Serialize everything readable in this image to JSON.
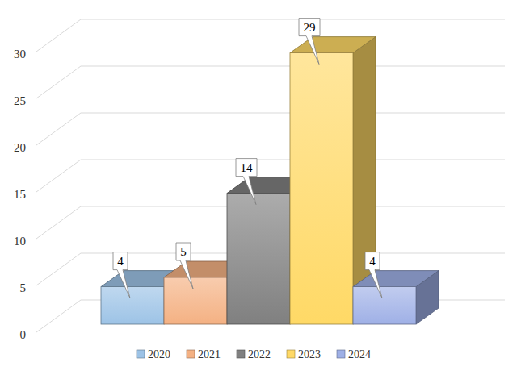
{
  "chart_data": {
    "type": "bar",
    "categories": [
      "2020",
      "2021",
      "2022",
      "2023",
      "2024"
    ],
    "values": [
      4,
      5,
      14,
      29,
      4
    ],
    "colors": [
      "#9dc3e6",
      "#f4b183",
      "#808080",
      "#ffd966",
      "#9fb0e6"
    ],
    "ylim": [
      0,
      30
    ],
    "yticks": [
      0,
      5,
      10,
      15,
      20,
      25,
      30
    ],
    "grid": true,
    "data_labels": true,
    "legend": "bottom",
    "tick_labels": "y"
  }
}
